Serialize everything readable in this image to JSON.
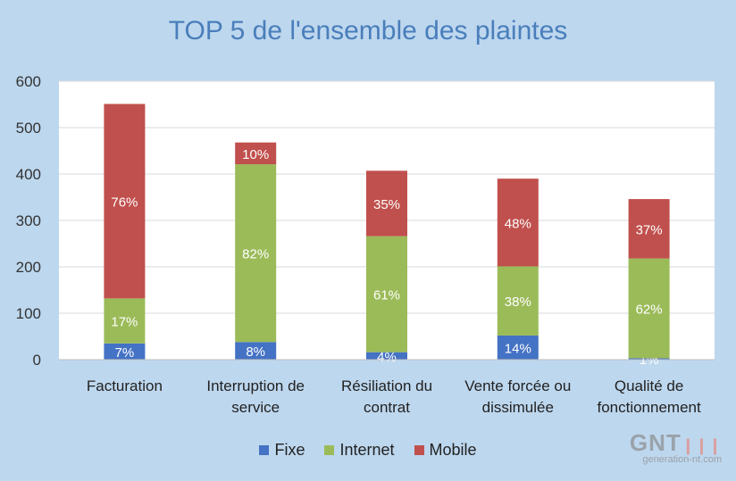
{
  "chart_data": {
    "type": "bar",
    "stacked": true,
    "title": "TOP 5 de l'ensemble des plaintes",
    "categories": [
      [
        "Facturation"
      ],
      [
        "Interruption de",
        "service"
      ],
      [
        "Résiliation du",
        "contrat"
      ],
      [
        "Vente forcée ou",
        "dissimulée"
      ],
      [
        "Qualité de",
        "fonctionnement"
      ]
    ],
    "ylim": [
      0,
      600
    ],
    "yticks": [
      0,
      100,
      200,
      300,
      400,
      500,
      600
    ],
    "grid": true,
    "legend_position": "bottom",
    "series": [
      {
        "name": "Fixe",
        "color": "#4472c4",
        "values": [
          35,
          38,
          16,
          52,
          3
        ],
        "labels": [
          "7%",
          "8%",
          "4%",
          "14%",
          "1%"
        ]
      },
      {
        "name": "Internet",
        "color": "#9bbb59",
        "values": [
          97,
          383,
          250,
          149,
          215
        ],
        "labels": [
          "17%",
          "82%",
          "61%",
          "38%",
          "62%"
        ]
      },
      {
        "name": "Mobile",
        "color": "#c0504d",
        "values": [
          419,
          47,
          141,
          189,
          128
        ],
        "labels": [
          "76%",
          "10%",
          "35%",
          "48%",
          "37%"
        ]
      }
    ]
  },
  "watermark": {
    "logo_text": "GNT",
    "domain_text": "generation-nt.com"
  }
}
